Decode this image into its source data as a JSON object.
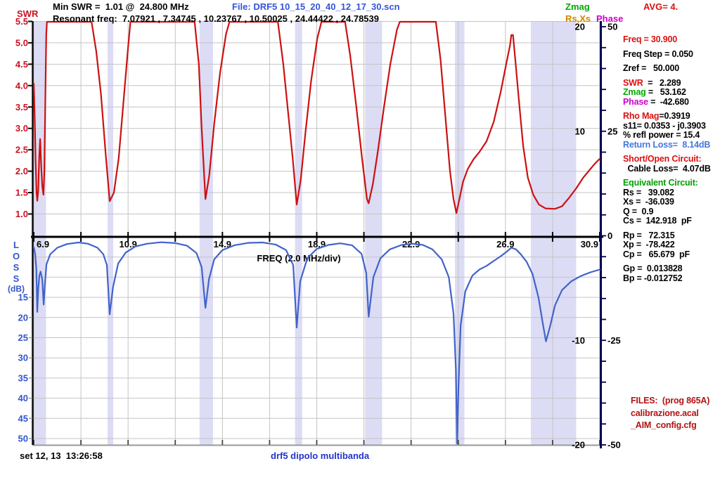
{
  "header": {
    "swr_axis_title": "SWR",
    "min_swr": "Min SWR =  1.01 @  24.800 MHz",
    "file": "File: DRF5 10_15_20_40_12_17_30.scn",
    "zmag_legend": "Zmag",
    "rsxs_legend": "Rs,Xs",
    "phase_legend": "Phase",
    "avg": "AVG= 4.",
    "resonant": "Resonant freq:  7.07921 , 7.34745 , 10.23767 , 10.50025 , 24.44422 , 24.78539"
  },
  "right_panel": {
    "groups": [
      {
        "lines": [
          [
            {
              "t": "Freq = 30.900",
              "c": "#dd1111"
            }
          ]
        ]
      },
      {
        "lines": [
          [
            {
              "t": "Freq Step = 0.050",
              "c": "#000000"
            }
          ]
        ]
      },
      {
        "lines": [
          [
            {
              "t": "Zref =   50.000",
              "c": "#000000"
            }
          ]
        ]
      },
      {
        "lines": [
          [
            {
              "t": "SWR",
              "c": "#dd1111"
            },
            {
              "t": "  =   2.289",
              "c": "#000000"
            }
          ],
          [
            {
              "t": "Zmag",
              "c": "#00aa00"
            },
            {
              "t": " =   53.162",
              "c": "#000000"
            }
          ],
          [
            {
              "t": "Phase",
              "c": "#cc00cc"
            },
            {
              "t": " =  -42.680",
              "c": "#000000"
            }
          ]
        ]
      },
      {
        "lines": [
          [
            {
              "t": "Rho Mag",
              "c": "#dd1111"
            },
            {
              "t": "=0.3919",
              "c": "#000000"
            }
          ],
          [
            {
              "t": "s11= 0.0353 - j0.3903",
              "c": "#000000"
            }
          ],
          [
            {
              "t": "% refl power = 15.4",
              "c": "#000000"
            }
          ],
          [
            {
              "t": "Return Loss=  8.14dB",
              "c": "#4477dd"
            }
          ]
        ]
      },
      {
        "lines": [
          [
            {
              "t": "Short/Open Circuit:",
              "c": "#dd1111"
            }
          ],
          [
            {
              "t": "  Cable Loss=  4.07dB",
              "c": "#000000"
            }
          ]
        ]
      },
      {
        "lines": [
          [
            {
              "t": "Equivalent Circuit:",
              "c": "#00a000"
            }
          ],
          [
            {
              "t": "Rs =   39.082",
              "c": "#000000"
            }
          ],
          [
            {
              "t": "Xs =  -36.039",
              "c": "#000000"
            }
          ],
          [
            {
              "t": "Q =  0.9",
              "c": "#000000"
            }
          ],
          [
            {
              "t": "Cs =  142.918  pF",
              "c": "#000000"
            }
          ]
        ]
      },
      {
        "lines": [
          [
            {
              "t": "Rp =   72.315",
              "c": "#000000"
            }
          ],
          [
            {
              "t": "Xp =  -78.422",
              "c": "#000000"
            }
          ],
          [
            {
              "t": "Cp =   65.679  pF",
              "c": "#000000"
            }
          ]
        ]
      },
      {
        "lines": [
          [
            {
              "t": "Gp =  0.013828",
              "c": "#000000"
            }
          ],
          [
            {
              "t": "Bp = -0.012752",
              "c": "#000000"
            }
          ]
        ]
      }
    ]
  },
  "files_panel": {
    "title": "FILES:  (prog 865A)",
    "file1": "calibrazione.acal",
    "file2": "_AIM_config.cfg"
  },
  "footer": {
    "timestamp": "set 12, 13  13:26:58",
    "scan_name": "drf5 dipolo multibanda"
  },
  "colors": {
    "red_text": "#dd1111",
    "blue_file": "#3355dd",
    "green_text": "#00aa00",
    "orange_text": "#cc8800",
    "magenta_text": "#cc00cc",
    "files_red": "#b31212",
    "footer_blue": "#2233cc",
    "swr_axis_labels": "#cc1122",
    "loss_axis_labels": "#3355cc",
    "band_fill": "#dcdcf5",
    "grid": "#c4c4c4",
    "right_axis": "#000055"
  },
  "chart_data": {
    "type": "line",
    "title": "",
    "xlabel": "FREQ (2.0 MHz/div)",
    "x_unit": "MHz",
    "axes": {
      "x": {
        "range": [
          6.9,
          30.9
        ],
        "tick_step_mhz": 2,
        "label_step_mhz": 4
      },
      "swr_left": {
        "labels": [
          5.5,
          5.0,
          4.5,
          4.0,
          3.5,
          3.0,
          2.5,
          2.0,
          1.5,
          1.0
        ],
        "title": "SWR"
      },
      "loss_left": {
        "labels": [
          15,
          20,
          25,
          30,
          35,
          40,
          45,
          50
        ],
        "grid_step_db": 5,
        "title_letters": [
          "L",
          "O",
          "S",
          "S"
        ],
        "title_unit": "(dB)"
      },
      "zmag_right": {
        "labels": [
          20,
          10,
          -10,
          -20
        ],
        "range": [
          -20,
          20
        ]
      },
      "phase_right": {
        "labels": [
          50,
          25,
          0,
          -25,
          -50
        ],
        "range": [
          -50,
          50
        ],
        "tick_step": 5
      }
    },
    "highlight_bands_mhz": [
      [
        6.9,
        7.42
      ],
      [
        10.03,
        10.27
      ],
      [
        13.93,
        14.5
      ],
      [
        17.98,
        18.28
      ],
      [
        20.95,
        21.67
      ],
      [
        24.76,
        25.16
      ],
      [
        27.98,
        29.9
      ]
    ],
    "series": [
      {
        "name": "SWR",
        "axis": "swr",
        "color": "#cc1111",
        "points": [
          [
            6.9,
            4.05
          ],
          [
            6.94,
            3.3
          ],
          [
            6.98,
            2.2
          ],
          [
            7.02,
            1.5
          ],
          [
            7.05,
            1.31
          ],
          [
            7.09,
            1.55
          ],
          [
            7.13,
            2.3
          ],
          [
            7.17,
            2.75
          ],
          [
            7.21,
            2.2
          ],
          [
            7.26,
            1.65
          ],
          [
            7.31,
            1.45
          ],
          [
            7.35,
            2.0
          ],
          [
            7.39,
            3.6
          ],
          [
            7.43,
            5.2
          ],
          [
            7.46,
            5.5
          ],
          [
            9.35,
            5.5
          ],
          [
            9.55,
            4.8
          ],
          [
            9.75,
            3.8
          ],
          [
            9.95,
            2.4
          ],
          [
            10.12,
            1.3
          ],
          [
            10.3,
            1.5
          ],
          [
            10.5,
            2.3
          ],
          [
            10.7,
            3.6
          ],
          [
            10.9,
            4.9
          ],
          [
            11.0,
            5.5
          ],
          [
            13.72,
            5.5
          ],
          [
            13.9,
            4.5
          ],
          [
            14.02,
            3.0
          ],
          [
            14.18,
            1.35
          ],
          [
            14.34,
            1.9
          ],
          [
            14.55,
            3.1
          ],
          [
            14.8,
            4.3
          ],
          [
            15.05,
            5.2
          ],
          [
            15.2,
            5.5
          ],
          [
            17.25,
            5.5
          ],
          [
            17.48,
            4.5
          ],
          [
            17.68,
            3.4
          ],
          [
            17.88,
            2.3
          ],
          [
            18.05,
            1.22
          ],
          [
            18.22,
            1.8
          ],
          [
            18.42,
            2.9
          ],
          [
            18.66,
            4.1
          ],
          [
            18.92,
            5.1
          ],
          [
            19.1,
            5.5
          ],
          [
            20.1,
            5.5
          ],
          [
            20.32,
            4.7
          ],
          [
            20.58,
            3.5
          ],
          [
            20.82,
            2.3
          ],
          [
            21.03,
            1.35
          ],
          [
            21.1,
            1.25
          ],
          [
            21.28,
            1.7
          ],
          [
            21.5,
            2.5
          ],
          [
            21.75,
            3.5
          ],
          [
            22.02,
            4.5
          ],
          [
            22.3,
            5.3
          ],
          [
            22.42,
            5.5
          ],
          [
            23.95,
            5.5
          ],
          [
            24.15,
            4.6
          ],
          [
            24.35,
            3.3
          ],
          [
            24.55,
            2.0
          ],
          [
            24.7,
            1.35
          ],
          [
            24.82,
            1.02
          ],
          [
            24.95,
            1.35
          ],
          [
            25.1,
            1.75
          ],
          [
            25.3,
            2.05
          ],
          [
            25.55,
            2.28
          ],
          [
            25.8,
            2.45
          ],
          [
            26.1,
            2.7
          ],
          [
            26.4,
            3.15
          ],
          [
            26.7,
            3.85
          ],
          [
            26.95,
            4.55
          ],
          [
            27.1,
            4.95
          ],
          [
            27.15,
            5.18
          ],
          [
            27.22,
            5.18
          ],
          [
            27.32,
            4.6
          ],
          [
            27.48,
            3.6
          ],
          [
            27.65,
            2.6
          ],
          [
            27.85,
            1.85
          ],
          [
            28.08,
            1.45
          ],
          [
            28.32,
            1.22
          ],
          [
            28.6,
            1.13
          ],
          [
            29.0,
            1.12
          ],
          [
            29.3,
            1.18
          ],
          [
            29.6,
            1.38
          ],
          [
            29.9,
            1.6
          ],
          [
            30.2,
            1.85
          ],
          [
            30.5,
            2.05
          ],
          [
            30.7,
            2.18
          ],
          [
            30.9,
            2.29
          ]
        ]
      },
      {
        "name": "Return Loss (dB)",
        "axis": "loss",
        "color": "#4263c9",
        "points": [
          [
            6.9,
            2.6
          ],
          [
            6.96,
            4.2
          ],
          [
            7.01,
            8.0
          ],
          [
            7.05,
            18.6
          ],
          [
            7.09,
            13.0
          ],
          [
            7.14,
            9.6
          ],
          [
            7.19,
            8.6
          ],
          [
            7.26,
            10.5
          ],
          [
            7.32,
            16.8
          ],
          [
            7.37,
            12.0
          ],
          [
            7.44,
            6.8
          ],
          [
            7.6,
            4.3
          ],
          [
            7.9,
            2.7
          ],
          [
            8.3,
            1.8
          ],
          [
            8.8,
            1.4
          ],
          [
            9.2,
            1.7
          ],
          [
            9.6,
            2.7
          ],
          [
            9.85,
            4.3
          ],
          [
            10.0,
            7.0
          ],
          [
            10.12,
            19.2
          ],
          [
            10.26,
            12.5
          ],
          [
            10.48,
            6.6
          ],
          [
            10.8,
            3.9
          ],
          [
            11.2,
            2.4
          ],
          [
            11.7,
            1.7
          ],
          [
            12.3,
            1.35
          ],
          [
            12.9,
            1.55
          ],
          [
            13.4,
            2.2
          ],
          [
            13.8,
            4.0
          ],
          [
            14.02,
            7.5
          ],
          [
            14.18,
            17.6
          ],
          [
            14.33,
            10.5
          ],
          [
            14.55,
            5.6
          ],
          [
            14.9,
            3.3
          ],
          [
            15.4,
            2.1
          ],
          [
            16.0,
            1.5
          ],
          [
            16.6,
            1.4
          ],
          [
            17.15,
            1.9
          ],
          [
            17.6,
            3.3
          ],
          [
            17.9,
            7.0
          ],
          [
            18.05,
            22.5
          ],
          [
            18.2,
            11.0
          ],
          [
            18.5,
            5.3
          ],
          [
            18.9,
            3.0
          ],
          [
            19.4,
            2.0
          ],
          [
            19.9,
            1.6
          ],
          [
            20.4,
            2.1
          ],
          [
            20.8,
            4.2
          ],
          [
            21.0,
            9.0
          ],
          [
            21.1,
            19.8
          ],
          [
            21.3,
            10.0
          ],
          [
            21.6,
            5.3
          ],
          [
            22.0,
            3.1
          ],
          [
            22.5,
            2.0
          ],
          [
            22.95,
            1.7
          ],
          [
            23.4,
            2.0
          ],
          [
            23.8,
            3.1
          ],
          [
            24.2,
            5.6
          ],
          [
            24.5,
            10.0
          ],
          [
            24.7,
            19.0
          ],
          [
            24.8,
            33.0
          ],
          [
            24.85,
            51.5
          ],
          [
            24.91,
            37.0
          ],
          [
            25.0,
            22.0
          ],
          [
            25.2,
            13.5
          ],
          [
            25.5,
            9.6
          ],
          [
            25.8,
            8.1
          ],
          [
            26.1,
            7.2
          ],
          [
            26.4,
            6.0
          ],
          [
            26.7,
            4.8
          ],
          [
            26.95,
            3.7
          ],
          [
            27.15,
            2.7
          ],
          [
            27.35,
            3.1
          ],
          [
            27.55,
            4.3
          ],
          [
            27.8,
            6.2
          ],
          [
            28.05,
            9.2
          ],
          [
            28.3,
            15.0
          ],
          [
            28.5,
            22.0
          ],
          [
            28.62,
            25.9
          ],
          [
            28.78,
            22.5
          ],
          [
            29.0,
            17.0
          ],
          [
            29.3,
            13.2
          ],
          [
            29.7,
            11.0
          ],
          [
            30.1,
            9.7
          ],
          [
            30.5,
            8.8
          ],
          [
            30.9,
            8.1
          ]
        ]
      }
    ]
  }
}
